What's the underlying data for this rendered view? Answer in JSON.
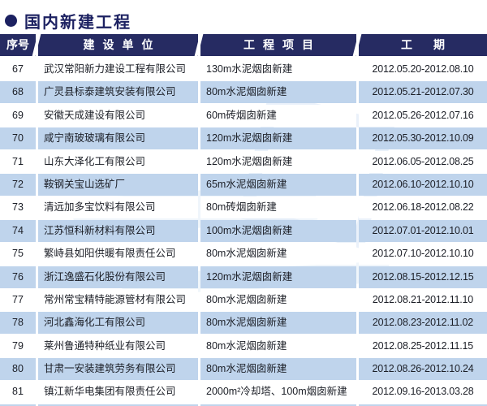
{
  "page": {
    "title": "国内新建工程",
    "bullet_icon": "filled-circle"
  },
  "colors": {
    "header_bg": "#262b62",
    "title_text": "#1c2161",
    "stripe_bg": "#bfd4ec",
    "body_text": "#1b1e26",
    "watermark": "#d9e6f5"
  },
  "table": {
    "headers": {
      "no": "序号",
      "company": "建设单位",
      "project": "工程项目",
      "period": "工期"
    },
    "rows": [
      {
        "no": "67",
        "company": "武汉常阳新力建设工程有限公司",
        "project": "130m水泥烟囱新建",
        "period": "2012.05.20-2012.08.10"
      },
      {
        "no": "68",
        "company": "广灵县标泰建筑安装有限公司",
        "project": "80m水泥烟囱新建",
        "period": "2012.05.21-2012.07.30"
      },
      {
        "no": "69",
        "company": "安徽天成建设有限公司",
        "project": "60m砖烟囱新建",
        "period": "2012.05.26-2012.07.16"
      },
      {
        "no": "70",
        "company": "咸宁南玻玻璃有限公司",
        "project": "120m水泥烟囱新建",
        "period": "2012.05.30-2012.10.09"
      },
      {
        "no": "71",
        "company": "山东大泽化工有限公司",
        "project": "120m水泥烟囱新建",
        "period": "2012.06.05-2012.08.25"
      },
      {
        "no": "72",
        "company": "鞍钢关宝山选矿厂",
        "project": "65m水泥烟囱新建",
        "period": "2012.06.10-2012.10.10"
      },
      {
        "no": "73",
        "company": "清远加多宝饮料有限公司",
        "project": "80m砖烟囱新建",
        "period": "2012.06.18-2012.08.22"
      },
      {
        "no": "74",
        "company": "江苏恒科新材料有限公司",
        "project": "100m水泥烟囱新建",
        "period": "2012.07.01-2012.10.01"
      },
      {
        "no": "75",
        "company": "繁峙县如阳供暖有限责任公司",
        "project": "80m水泥烟囱新建",
        "period": "2012.07.10-2012.10.10"
      },
      {
        "no": "76",
        "company": "浙江逸盛石化股份有限公司",
        "project": "120m水泥烟囱新建",
        "period": "2012.08.15-2012.12.15"
      },
      {
        "no": "77",
        "company": "常州常宝精特能源管材有限公司",
        "project": "80m水泥烟囱新建",
        "period": "2012.08.21-2012.11.10"
      },
      {
        "no": "78",
        "company": "河北鑫海化工有限公司",
        "project": "80m水泥烟囱新建",
        "period": "2012.08.23-2012.11.02"
      },
      {
        "no": "79",
        "company": "莱州鲁通特种纸业有限公司",
        "project": "80m水泥烟囱新建",
        "period": "2012.08.25-2012.11.15"
      },
      {
        "no": "80",
        "company": "甘肃一安装建筑劳务有限公司",
        "project": "80m水泥烟囱新建",
        "period": "2012.08.26-2012.10.24"
      },
      {
        "no": "81",
        "company": "镇江新华电集团有限责任公司",
        "project": "2000m²冷却塔、100m烟囱新建",
        "period": "2012.09.16-2013.03.28"
      }
    ]
  }
}
